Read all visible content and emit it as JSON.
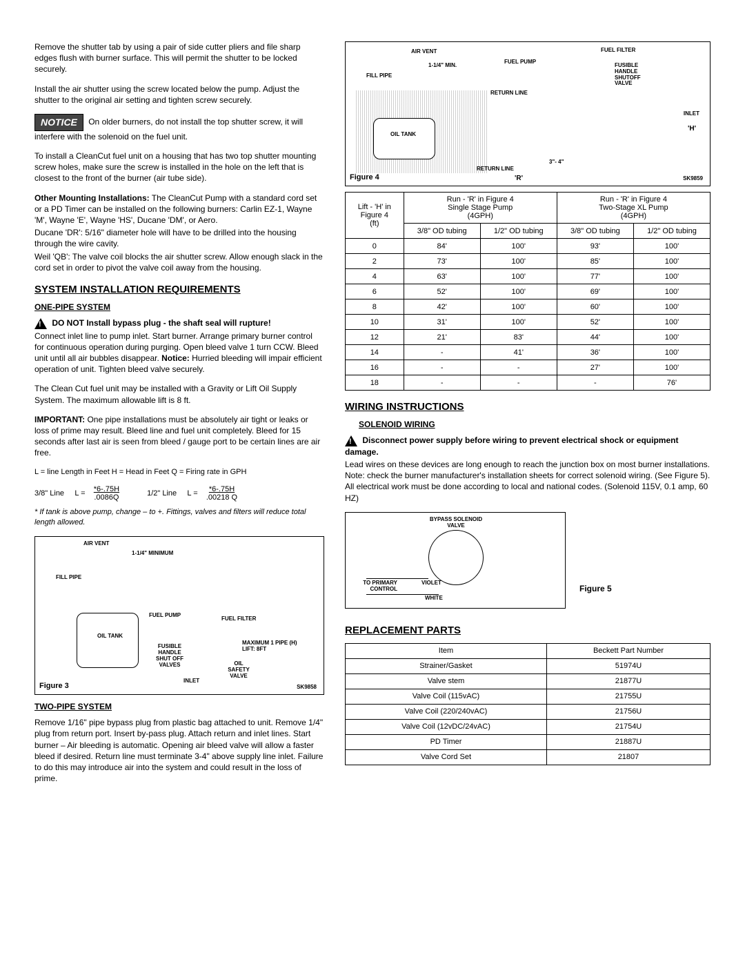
{
  "leftCol": {
    "p1": "Remove the shutter tab by using a pair of side cutter pliers and file sharp edges flush with burner surface.  This will permit the shutter to be locked securely.",
    "p2": "Install the air shutter using the screw located below the pump. Adjust the shutter to the original air setting and tighten screw securely.",
    "noticeLabel": "NOTICE",
    "noticeText": " On older burners, do not install the top shutter screw, it will interfere with the solenoid on the fuel unit.",
    "p3": "To install a CleanCut fuel unit on a housing that has two top shutter mounting screw holes, make sure the screw is installed in the hole on the left that is closest to the front of the burner (air tube side).",
    "otherMountingLabel": "Other Mounting Installations:",
    "otherMountingText": " The CleanCut Pump with a standard cord set or a PD Timer can be installed on the following burners: Carlin EZ-1, Wayne 'M', Wayne 'E', Wayne 'HS', Ducane 'DM', or Aero.",
    "ducaneText": "Ducane 'DR': 5/16\" diameter hole will have to be drilled into the housing through the wire cavity.",
    "weilText": "Weil 'QB': The valve coil blocks the air shutter screw. Allow enough slack in the cord set in order to pivot the valve coil away from the housing.",
    "h2_sys": "SYSTEM INSTALLATION REQUIREMENTS",
    "h3_onePipe": "ONE-PIPE SYSTEM",
    "onePipeWarn": "DO NOT Install bypass plug - the shaft seal will rupture!",
    "onePipeP1": "Connect inlet line to pump inlet.  Start burner. Arrange primary burner control for continuous operation during purging.  Open bleed valve 1 turn CCW.  Bleed unit until all air bubbles disappear.  ",
    "onePipeNoticeLabel": "Notice:",
    "onePipeNoticeText": " Hurried bleeding will impair efficient operation of unit. Tighten bleed valve securely.",
    "onePipeP2": "The Clean Cut fuel unit may be installed with a Gravity or Lift Oil Supply System.  The maximum allowable lift is 8 ft.",
    "importantLabel": "IMPORTANT:",
    "importantText": "  One pipe installations must be absolutely air tight or leaks or loss of prime may result.  Bleed line and fuel unit completely.  Bleed for 15 seconds after last air is seen from bleed / gauge port to be certain lines are air free.",
    "legend": "L = line Length in Feet   H = Head in Feet   Q = Firing rate in GPH",
    "formula": {
      "l38label": "3/8\" Line",
      "eq": "L =",
      "l38top": "*6-.75H",
      "l38bot": ".0086Q",
      "l12label": "1/2\" Line",
      "l12top": "*6-.75H",
      "l12bot": ".00218 Q"
    },
    "formulaNote": "*  If tank is above pump, change – to +.  Fittings, valves and filters will reduce total length allowed.",
    "fig3Label": "Figure 3",
    "fig3": {
      "airVent": "AIR VENT",
      "min": "1-1/4\" MINIMUM",
      "fillPipe": "FILL PIPE",
      "oilTank": "OIL TANK",
      "fuelPump": "FUEL PUMP",
      "fuelFilter": "FUEL FILTER",
      "fusible": "FUSIBLE HANDLE SHUT OFF VALVES",
      "maxPipe": "MAXIMUM 1 PIPE (H) LIFT: 8FT",
      "oilSafety": "OIL SAFETY VALVE",
      "inlet": "INLET",
      "sk": "SK9858"
    },
    "h3_twoPipe": "TWO-PIPE SYSTEM",
    "twoPipeText": "Remove 1/16\" pipe bypass plug from plastic bag attached to unit. Remove 1/4\"  plug from return port.  Insert by-pass plug.  Attach return and inlet lines.  Start burner – Air bleeding is automatic. Opening air bleed valve will allow a faster bleed if desired.  Return line must terminate 3-4\" above supply line inlet.  Failure to do this may introduce air into the system and could result in the loss of prime."
  },
  "rightCol": {
    "fig4Label": "Figure 4",
    "fig4": {
      "airVent": "AIR VENT",
      "min": "1-1/4\" MIN.",
      "fillPipe": "FILL PIPE",
      "oilTank": "OIL TANK",
      "fuelPump": "FUEL PUMP",
      "returnLine": "RETURN LINE",
      "returnLine2": "RETURN LINE",
      "fuelFilter": "FUEL FILTER",
      "fusible": "FUSIBLE HANDLE SHUTOFF VALVE",
      "inlet": "INLET",
      "h": "'H'",
      "r": "'R'",
      "dim": "3\"- 4\"",
      "sk": "SK9859"
    },
    "table": {
      "colHeaders": {
        "c1a": "Lift - 'H' in",
        "c1b": "Figure 4",
        "c1c": "(ft)",
        "c2a": "Run - 'R' in Figure 4",
        "c2b": "Single Stage Pump",
        "c2c": "(4GPH)",
        "c3a": "Run - 'R' in Figure 4",
        "c3b": "Two-Stage XL Pump",
        "c3c": "(4GPH)",
        "s38": "3/8\" OD tubing",
        "s12": "1/2\" OD tubing"
      },
      "rows": [
        [
          "0",
          "84'",
          "100'",
          "93'",
          "100'"
        ],
        [
          "2",
          "73'",
          "100'",
          "85'",
          "100'"
        ],
        [
          "4",
          "63'",
          "100'",
          "77'",
          "100'"
        ],
        [
          "6",
          "52'",
          "100'",
          "69'",
          "100'"
        ],
        [
          "8",
          "42'",
          "100'",
          "60'",
          "100'"
        ],
        [
          "10",
          "31'",
          "100'",
          "52'",
          "100'"
        ],
        [
          "12",
          "21'",
          "83'",
          "44'",
          "100'"
        ],
        [
          "14",
          "-",
          "41'",
          "36'",
          "100'"
        ],
        [
          "16",
          "-",
          "-",
          "27'",
          "100'"
        ],
        [
          "18",
          "-",
          "-",
          "-",
          "76'"
        ]
      ]
    },
    "h2_wiring": "WIRING INSTRUCTIONS",
    "h3_solenoid": "SOLENOID WIRING",
    "wiringWarn": "Disconnect power supply before wiring to prevent electrical shock or equipment damage.",
    "wiringP1": "Lead wires on these devices are long enough to reach the junction box on most burner installations.  Note: check the burner manufacturer's installation sheets for correct solenoid wiring.  (See Figure 5).  All electrical work must be done according to local and national codes.  (Solenoid 115V, 0.1 amp, 60 HZ)",
    "fig5": {
      "bypass": "BYPASS  SOLENOID VALVE",
      "violet": "VIOLET",
      "white": "WHITE",
      "toPrimary": "TO  PRIMARY CONTROL"
    },
    "fig5Label": "Figure 5",
    "h2_parts": "REPLACEMENT PARTS",
    "partsTable": {
      "h1": "Item",
      "h2": "Beckett Part Number",
      "rows": [
        [
          "Strainer/Gasket",
          "51974U"
        ],
        [
          "Valve stem",
          "21877U"
        ],
        [
          "Valve Coil (115vAC)",
          "21755U"
        ],
        [
          "Valve Coil (220/240vAC)",
          "21756U"
        ],
        [
          "Valve Coil (12vDC/24vAC)",
          "21754U"
        ],
        [
          "PD Timer",
          "21887U"
        ],
        [
          "Valve Cord Set",
          "21807"
        ]
      ]
    }
  }
}
